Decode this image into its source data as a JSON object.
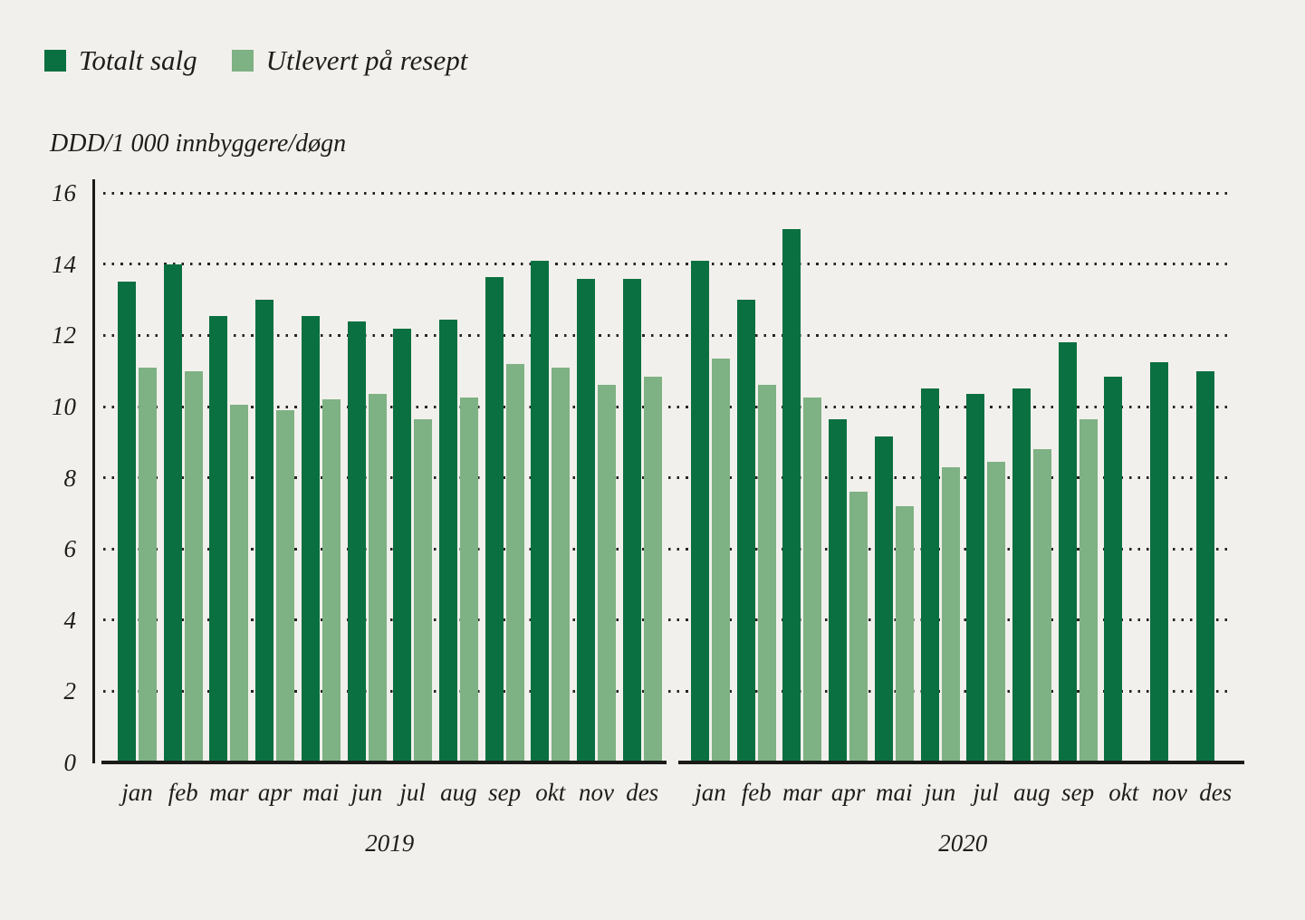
{
  "colors": {
    "background": "#f2f0ec",
    "text": "#1d1d1b",
    "axis": "#1a1a18",
    "grid_dots": "#262522",
    "total": "#0b7041",
    "resept": "#7eb183"
  },
  "legend": {
    "items": [
      {
        "label": "Totalt salg",
        "key": "total"
      },
      {
        "label": "Utlevert på resept",
        "key": "resept"
      }
    ]
  },
  "y_axis_title": "DDD/1 000 innbyggere/døgn",
  "chart_data": {
    "type": "bar",
    "title": "",
    "ylabel": "DDD/1 000 innbyggere/døgn",
    "xlabel": "",
    "ylim": [
      0,
      16
    ],
    "yticks": [
      0,
      2,
      4,
      6,
      8,
      10,
      12,
      14,
      16
    ],
    "grid": "horizontal-dotted",
    "legend_position": "top-left",
    "series_names": [
      "Totalt salg",
      "Utlevert på resept"
    ],
    "groups": [
      {
        "year": "2019",
        "categories": [
          "jan",
          "feb",
          "mar",
          "apr",
          "mai",
          "jun",
          "jul",
          "aug",
          "sep",
          "okt",
          "nov",
          "des"
        ],
        "series": [
          {
            "name": "Totalt salg",
            "values": [
              13.5,
              14.0,
              12.55,
              13.0,
              12.55,
              12.4,
              12.2,
              12.45,
              13.65,
              14.1,
              13.6,
              13.6
            ]
          },
          {
            "name": "Utlevert på resept",
            "values": [
              11.1,
              11.0,
              10.05,
              9.9,
              10.2,
              10.35,
              9.65,
              10.25,
              11.2,
              11.1,
              10.6,
              10.85
            ]
          }
        ]
      },
      {
        "year": "2020",
        "categories": [
          "jan",
          "feb",
          "mar",
          "apr",
          "mai",
          "jun",
          "jul",
          "aug",
          "sep",
          "okt",
          "nov",
          "des"
        ],
        "series": [
          {
            "name": "Totalt salg",
            "values": [
              14.1,
              13.0,
              15.0,
              9.65,
              9.15,
              10.5,
              10.35,
              10.5,
              11.8,
              10.85,
              11.25,
              11.0
            ]
          },
          {
            "name": "Utlevert på resept",
            "values": [
              11.35,
              10.6,
              10.25,
              7.6,
              7.2,
              8.3,
              8.45,
              8.8,
              9.65,
              null,
              null,
              null
            ]
          }
        ]
      }
    ]
  }
}
